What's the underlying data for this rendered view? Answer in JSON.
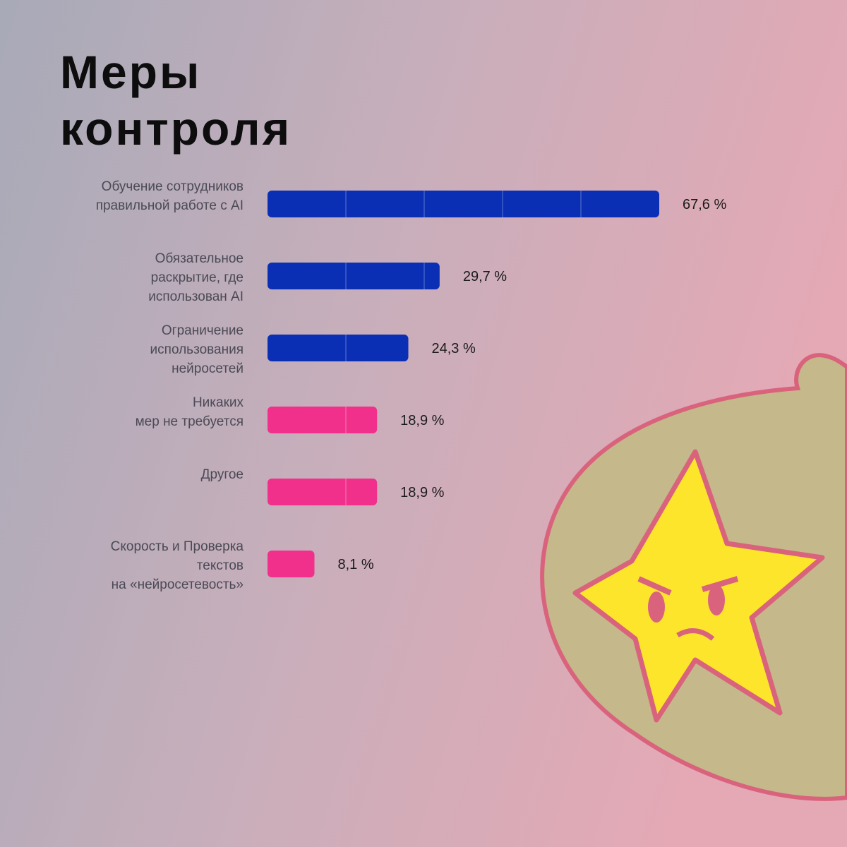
{
  "chart_data": {
    "type": "hbar",
    "title": "Меры\nконтроля",
    "categories": [
      "Обучение сотрудников\nправильной работе с AI",
      "Обязательное\nраскрытие, где\nиспользован AI",
      "Ограничение\nиспользования\nнейросетей",
      "Никаких\nмер не требуется",
      "Другое",
      "Скорость и Проверка\nтекстов\nна «нейросетевость»"
    ],
    "values": [
      67.6,
      29.7,
      24.3,
      18.9,
      18.9,
      8.1
    ],
    "value_labels": [
      "67,6 %",
      "29,7 %",
      "24,3 %",
      "18,9 %",
      "18,9 %",
      "8,1 %"
    ],
    "colors": [
      "#0a2fb5",
      "#0a2fb5",
      "#0a2fb5",
      "#f0308a",
      "#f0308a",
      "#f0308a"
    ],
    "xlim": [
      0,
      67.6
    ]
  }
}
